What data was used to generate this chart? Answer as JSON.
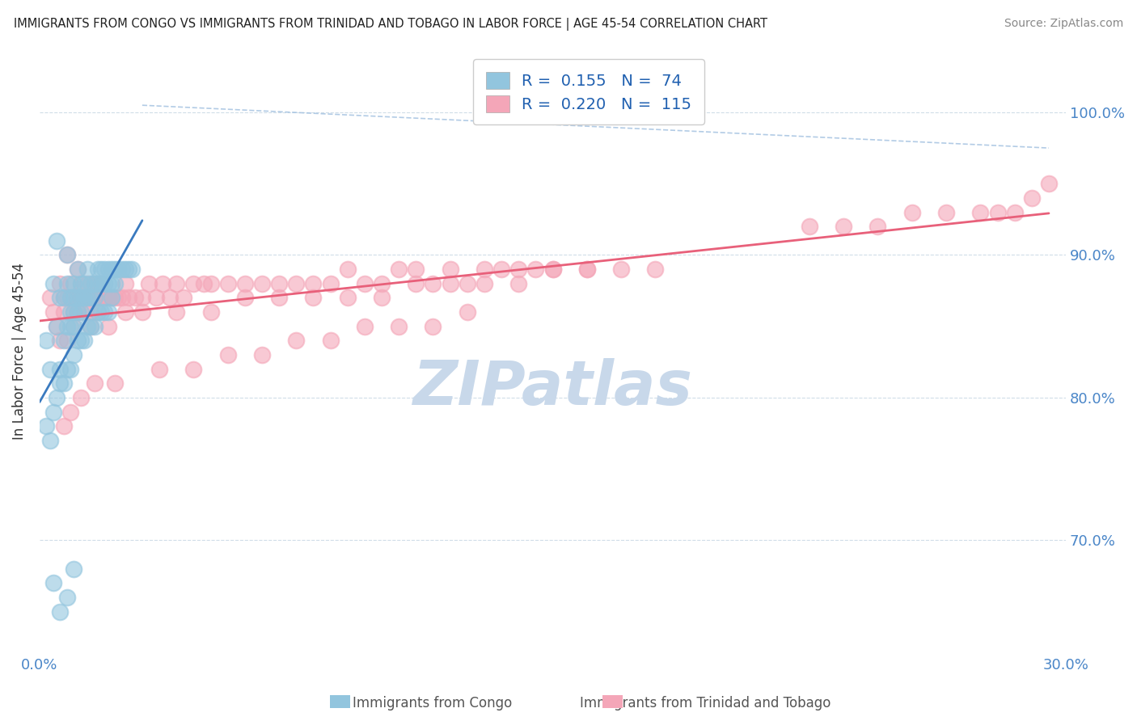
{
  "title": "IMMIGRANTS FROM CONGO VS IMMIGRANTS FROM TRINIDAD AND TOBAGO IN LABOR FORCE | AGE 45-54 CORRELATION CHART",
  "source": "Source: ZipAtlas.com",
  "ylabel": "In Labor Force | Age 45-54",
  "xlim": [
    0.0,
    0.3
  ],
  "ylim": [
    0.62,
    1.045
  ],
  "xticks": [
    0.0,
    0.3
  ],
  "xticklabels": [
    "0.0%",
    "30.0%"
  ],
  "yticks": [
    0.7,
    0.8,
    0.9,
    1.0
  ],
  "yticklabels": [
    "70.0%",
    "80.0%",
    "90.0%",
    "100.0%"
  ],
  "congo_R": 0.155,
  "congo_N": 74,
  "tt_R": 0.22,
  "tt_N": 115,
  "congo_color": "#92c5de",
  "tt_color": "#f4a6b8",
  "congo_line_color": "#3a7abf",
  "tt_line_color": "#e8607a",
  "ref_line_color": "#9fbfdf",
  "watermark": "ZIPatlas",
  "watermark_color": "#c8d8ea",
  "bottom_label1": "Immigrants from Congo",
  "bottom_label2": "Immigrants from Trinidad and Tobago",
  "congo_scatter_x": [
    0.002,
    0.003,
    0.004,
    0.005,
    0.005,
    0.006,
    0.006,
    0.007,
    0.007,
    0.008,
    0.008,
    0.008,
    0.009,
    0.009,
    0.009,
    0.01,
    0.01,
    0.01,
    0.01,
    0.011,
    0.011,
    0.011,
    0.012,
    0.012,
    0.012,
    0.013,
    0.013,
    0.014,
    0.014,
    0.015,
    0.015,
    0.016,
    0.016,
    0.017,
    0.017,
    0.018,
    0.018,
    0.019,
    0.019,
    0.02,
    0.02,
    0.021,
    0.021,
    0.022,
    0.022,
    0.023,
    0.024,
    0.025,
    0.026,
    0.027,
    0.002,
    0.003,
    0.004,
    0.005,
    0.006,
    0.007,
    0.008,
    0.009,
    0.01,
    0.011,
    0.012,
    0.013,
    0.014,
    0.015,
    0.016,
    0.017,
    0.018,
    0.019,
    0.02,
    0.021,
    0.004,
    0.006,
    0.008,
    0.01
  ],
  "congo_scatter_y": [
    0.84,
    0.82,
    0.88,
    0.85,
    0.91,
    0.82,
    0.87,
    0.84,
    0.87,
    0.88,
    0.9,
    0.85,
    0.87,
    0.85,
    0.86,
    0.88,
    0.87,
    0.86,
    0.85,
    0.89,
    0.87,
    0.86,
    0.88,
    0.87,
    0.86,
    0.87,
    0.88,
    0.87,
    0.89,
    0.88,
    0.87,
    0.88,
    0.87,
    0.89,
    0.88,
    0.88,
    0.89,
    0.88,
    0.89,
    0.88,
    0.89,
    0.89,
    0.88,
    0.89,
    0.88,
    0.89,
    0.89,
    0.89,
    0.89,
    0.89,
    0.78,
    0.77,
    0.79,
    0.8,
    0.81,
    0.81,
    0.82,
    0.82,
    0.83,
    0.84,
    0.84,
    0.84,
    0.85,
    0.85,
    0.85,
    0.86,
    0.86,
    0.86,
    0.86,
    0.87,
    0.67,
    0.65,
    0.66,
    0.68
  ],
  "tt_scatter_x": [
    0.003,
    0.004,
    0.005,
    0.006,
    0.007,
    0.007,
    0.008,
    0.008,
    0.009,
    0.009,
    0.01,
    0.01,
    0.011,
    0.011,
    0.012,
    0.012,
    0.013,
    0.013,
    0.014,
    0.014,
    0.015,
    0.015,
    0.016,
    0.016,
    0.017,
    0.017,
    0.018,
    0.018,
    0.019,
    0.02,
    0.021,
    0.022,
    0.023,
    0.024,
    0.025,
    0.026,
    0.028,
    0.03,
    0.032,
    0.034,
    0.036,
    0.038,
    0.04,
    0.042,
    0.045,
    0.048,
    0.05,
    0.055,
    0.06,
    0.065,
    0.07,
    0.075,
    0.08,
    0.085,
    0.09,
    0.095,
    0.1,
    0.105,
    0.11,
    0.115,
    0.12,
    0.125,
    0.13,
    0.135,
    0.14,
    0.145,
    0.15,
    0.16,
    0.17,
    0.18,
    0.006,
    0.008,
    0.01,
    0.015,
    0.02,
    0.025,
    0.03,
    0.04,
    0.05,
    0.06,
    0.07,
    0.08,
    0.09,
    0.1,
    0.11,
    0.12,
    0.13,
    0.14,
    0.15,
    0.16,
    0.007,
    0.009,
    0.012,
    0.016,
    0.022,
    0.035,
    0.045,
    0.055,
    0.065,
    0.075,
    0.085,
    0.095,
    0.105,
    0.115,
    0.125,
    0.28,
    0.29,
    0.295,
    0.285,
    0.275,
    0.265,
    0.255,
    0.245,
    0.235,
    0.225
  ],
  "tt_scatter_y": [
    0.87,
    0.86,
    0.85,
    0.88,
    0.87,
    0.86,
    0.87,
    0.9,
    0.88,
    0.87,
    0.87,
    0.86,
    0.86,
    0.89,
    0.87,
    0.88,
    0.87,
    0.86,
    0.87,
    0.88,
    0.86,
    0.87,
    0.88,
    0.87,
    0.86,
    0.87,
    0.88,
    0.87,
    0.87,
    0.87,
    0.87,
    0.87,
    0.87,
    0.87,
    0.88,
    0.87,
    0.87,
    0.87,
    0.88,
    0.87,
    0.88,
    0.87,
    0.88,
    0.87,
    0.88,
    0.88,
    0.88,
    0.88,
    0.88,
    0.88,
    0.88,
    0.88,
    0.88,
    0.88,
    0.89,
    0.88,
    0.88,
    0.89,
    0.89,
    0.88,
    0.89,
    0.88,
    0.89,
    0.89,
    0.89,
    0.89,
    0.89,
    0.89,
    0.89,
    0.89,
    0.84,
    0.84,
    0.85,
    0.85,
    0.85,
    0.86,
    0.86,
    0.86,
    0.86,
    0.87,
    0.87,
    0.87,
    0.87,
    0.87,
    0.88,
    0.88,
    0.88,
    0.88,
    0.89,
    0.89,
    0.78,
    0.79,
    0.8,
    0.81,
    0.81,
    0.82,
    0.82,
    0.83,
    0.83,
    0.84,
    0.84,
    0.85,
    0.85,
    0.85,
    0.86,
    0.93,
    0.94,
    0.95,
    0.93,
    0.93,
    0.93,
    0.93,
    0.92,
    0.92,
    0.92
  ]
}
